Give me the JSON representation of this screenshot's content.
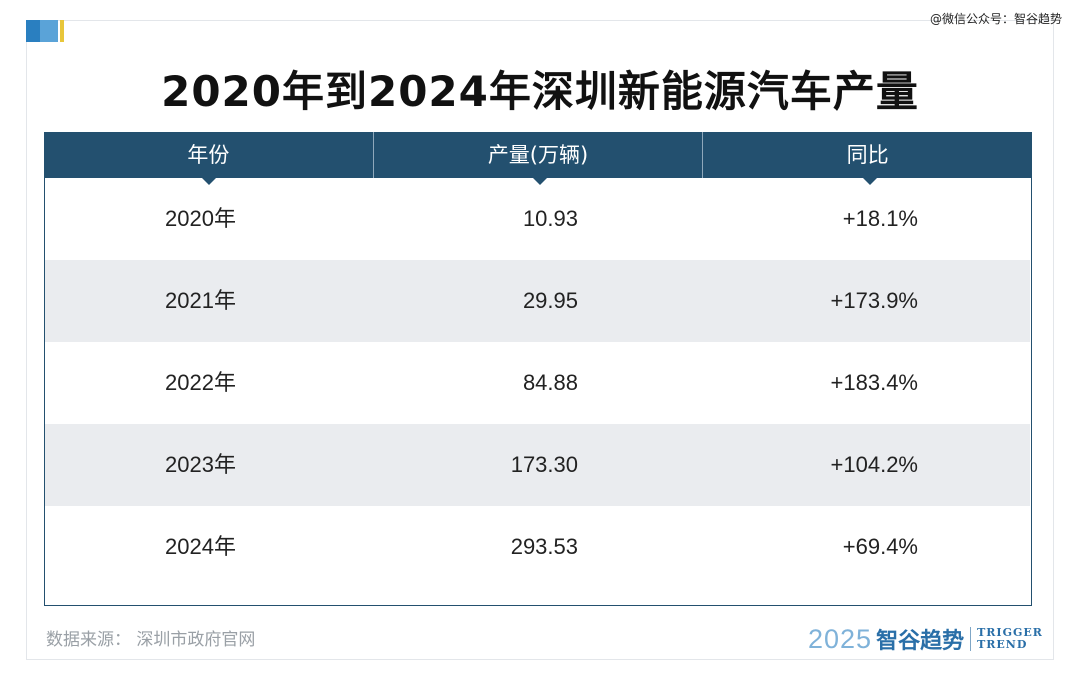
{
  "watermark": "@微信公众号：智谷趋势",
  "title": "2020年到2024年深圳新能源汽车产量",
  "table": {
    "headers": [
      "年份",
      "产量(万辆)",
      "同比"
    ],
    "rows": [
      {
        "year": "2020年",
        "production": "10.93",
        "yoy": "+18.1%"
      },
      {
        "year": "2021年",
        "production": "29.95",
        "yoy": "+173.9%"
      },
      {
        "year": "2022年",
        "production": "84.88",
        "yoy": "+183.4%"
      },
      {
        "year": "2023年",
        "production": "173.30",
        "yoy": "+104.2%"
      },
      {
        "year": "2024年",
        "production": "293.53",
        "yoy": "+69.4%"
      }
    ]
  },
  "source": "数据来源：  深圳市政府官网",
  "brand": {
    "year": "2025",
    "name": "智谷趋势",
    "en_line1": "TRIGGER",
    "en_line2": "TREND"
  },
  "colors": {
    "header_bg": "#23506f",
    "alt_row_bg": "#eaecef",
    "brand_blue": "#2a6fa8"
  }
}
